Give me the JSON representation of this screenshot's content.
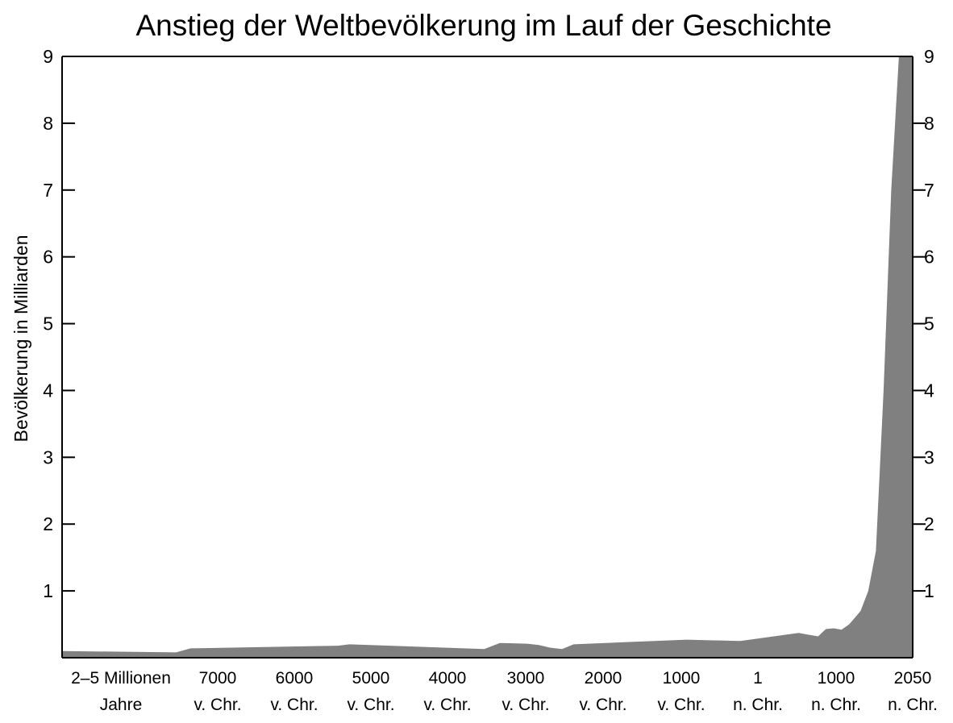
{
  "chart_data": {
    "type": "area",
    "title": "Anstieg der Weltbevölkerung im Lauf der Geschichte",
    "ylabel": "Bevölkerung in Milliarden",
    "xlabel": "",
    "ylim": [
      0,
      9
    ],
    "y_ticks": [
      1,
      2,
      3,
      4,
      5,
      6,
      7,
      8,
      9
    ],
    "y_ticks_right": [
      1,
      2,
      3,
      4,
      5,
      6,
      7,
      8,
      9
    ],
    "grid": false,
    "legend": "none",
    "fill_color": "#808080",
    "x_tick_labels": [
      [
        "2–5 Millionen",
        "Jahre"
      ],
      [
        "7000",
        "v. Chr."
      ],
      [
        "6000",
        "v. Chr."
      ],
      [
        "5000",
        "v. Chr."
      ],
      [
        "4000",
        "v. Chr."
      ],
      [
        "3000",
        "v. Chr."
      ],
      [
        "2000",
        "v. Chr."
      ],
      [
        "1000",
        "v. Chr."
      ],
      [
        "1",
        "n. Chr."
      ],
      [
        "1000",
        "n. Chr."
      ],
      [
        "2050",
        "n. Chr."
      ]
    ],
    "series": [
      {
        "x": [
          0,
          1.3,
          1.45,
          3.3,
          3.45,
          5.2,
          5.4,
          5.75,
          5.9,
          6.05,
          6.2,
          6.35,
          7.8,
          8.5,
          9.0,
          9.25,
          9.35,
          9.5,
          9.6,
          9.7,
          9.8,
          9.9,
          10.05,
          10.15,
          10.25,
          10.35,
          10.45,
          10.55,
          10.6
        ],
        "y": [
          0.1,
          0.08,
          0.14,
          0.18,
          0.2,
          0.13,
          0.22,
          0.21,
          0.19,
          0.15,
          0.13,
          0.2,
          0.27,
          0.25,
          0.33,
          0.37,
          0.35,
          0.32,
          0.43,
          0.44,
          0.42,
          0.5,
          0.7,
          1.0,
          1.6,
          4.0,
          7.0,
          9.0,
          9.0
        ]
      }
    ]
  }
}
